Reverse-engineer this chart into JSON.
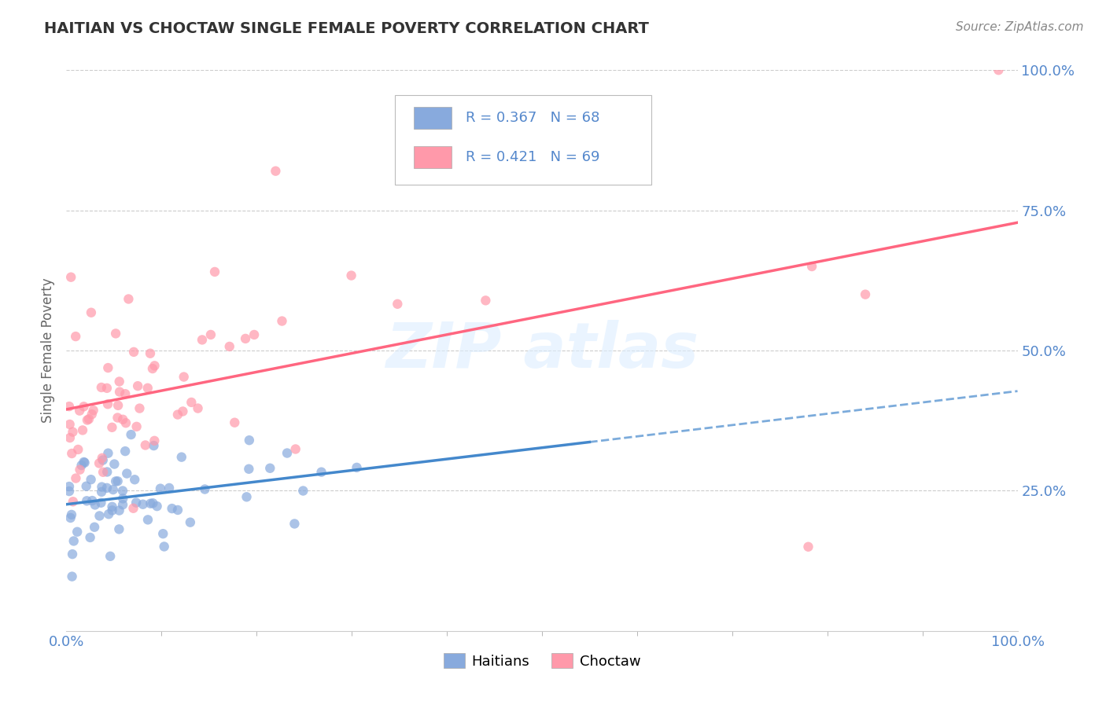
{
  "title": "HAITIAN VS CHOCTAW SINGLE FEMALE POVERTY CORRELATION CHART",
  "source": "Source: ZipAtlas.com",
  "ylabel": "Single Female Poverty",
  "legend_label1": "Haitians",
  "legend_label2": "Choctaw",
  "R1": 0.367,
  "N1": 68,
  "R2": 0.421,
  "N2": 69,
  "color_haitian": "#88AADD",
  "color_choctaw": "#FF99AA",
  "color_haitian_line": "#4488CC",
  "color_choctaw_line": "#FF6680",
  "background_color": "#FFFFFF",
  "xlim": [
    0,
    100
  ],
  "ylim": [
    0,
    100
  ],
  "grid_color": "#CCCCCC",
  "title_color": "#333333",
  "axis_color": "#5588CC",
  "watermark_color": "#DDEEFF",
  "watermark_text_color": "#BBCCEE"
}
